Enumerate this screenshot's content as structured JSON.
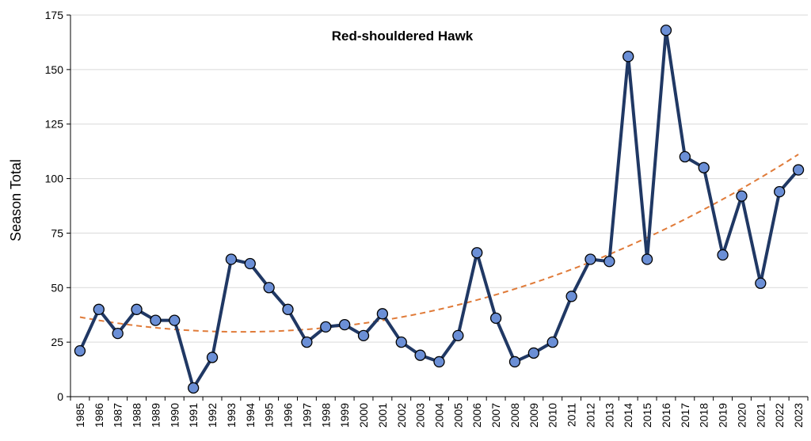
{
  "chart_data": {
    "type": "line",
    "title": "Red-shouldered Hawk",
    "xlabel": "",
    "ylabel": "Season Total",
    "ylim": [
      0,
      175
    ],
    "yticks": [
      0,
      25,
      50,
      75,
      100,
      125,
      150,
      175
    ],
    "grid": true,
    "legend": "none",
    "x": [
      "1985",
      "1986",
      "1987",
      "1988",
      "1989",
      "1990",
      "1991",
      "1992",
      "1993",
      "1994",
      "1995",
      "1996",
      "1997",
      "1998",
      "1999",
      "2000",
      "2001",
      "2002",
      "2003",
      "2004",
      "2005",
      "2006",
      "2007",
      "2008",
      "2009",
      "2010",
      "2011",
      "2012",
      "2013",
      "2014",
      "2015",
      "2016",
      "2017",
      "2018",
      "2019",
      "2020",
      "2021",
      "2022",
      "2023"
    ],
    "series": [
      {
        "values": [
          21,
          40,
          29,
          40,
          35,
          35,
          4,
          18,
          63,
          61,
          50,
          40,
          25,
          32,
          33,
          28,
          38,
          25,
          19,
          16,
          28,
          66,
          36,
          16,
          20,
          25,
          46,
          63,
          62,
          156,
          63,
          168,
          110,
          105,
          65,
          92,
          52,
          94,
          104
        ],
        "color": "#203864",
        "marker_color": "#6b8fd6"
      }
    ],
    "trendline": {
      "type": "polynomial",
      "start_value": 41.5,
      "end_value": 106,
      "color": "#e07b39",
      "dashed": true
    },
    "colors": {
      "grid": "#d9d9d9",
      "axis": "#000000"
    }
  }
}
